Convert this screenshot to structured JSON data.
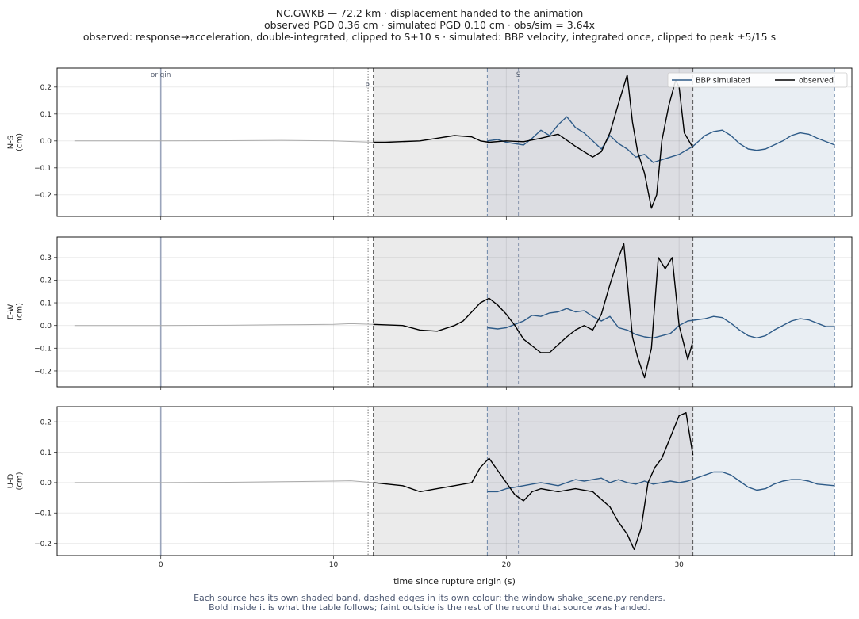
{
  "header": {
    "line1": "NC.GWKB  —  72.2 km   ·   displacement handed to the animation",
    "line2": "observed PGD 0.36 cm   ·   simulated PGD 0.10 cm   ·   obs/sim = 3.64x",
    "line3": "observed: response→acceleration, double-integrated, clipped to S+10 s   ·   simulated: BBP velocity, integrated once, clipped to peak ±5/15 s"
  },
  "footer": {
    "line1": "Each source has its own shaded band, dashed edges in its own colour: the window shake_scene.py renders.",
    "line2": "Bold inside it is what the table follows;   faint outside is the rest of the record that source was handed."
  },
  "colors": {
    "observed": "#000000",
    "simulated": "#2e5b88",
    "faint": "#aaaaaa",
    "obs_band": "#ebebeb",
    "sim_band": "#e9eef3",
    "overlap_band": "#dcdde2",
    "origin_line": "#9aa4bb"
  },
  "chart_data": {
    "type": "line",
    "xlabel": "time since rupture origin (s)",
    "xlim": [
      -6,
      40
    ],
    "xticks": [
      0,
      10,
      20,
      30
    ],
    "grid": true,
    "legend": {
      "position": "top-right",
      "entries": [
        "BBP simulated",
        "observed"
      ]
    },
    "markers": {
      "origin": 0,
      "origin_label": "origin",
      "P": 12.0,
      "P_label": "P",
      "S": 20.7,
      "S_label": "S"
    },
    "observed_window": [
      12.3,
      30.8
    ],
    "simulated_window": [
      18.9,
      39.0
    ],
    "panels": [
      {
        "ylabel": "N-S\n(cm)",
        "ylim": [
          -0.28,
          0.27
        ],
        "yticks": [
          -0.2,
          -0.1,
          0.0,
          0.1,
          0.2
        ],
        "observed": [
          [
            -5,
            0.0
          ],
          [
            0,
            0.0
          ],
          [
            4,
            0.001
          ],
          [
            7,
            0.002
          ],
          [
            10,
            0.0
          ],
          [
            12.3,
            -0.005
          ],
          [
            13,
            -0.005
          ],
          [
            15,
            0.0
          ],
          [
            16,
            0.01
          ],
          [
            17,
            0.02
          ],
          [
            18,
            0.015
          ],
          [
            18.5,
            0.0
          ],
          [
            19,
            -0.005
          ],
          [
            20,
            0.0
          ],
          [
            21,
            -0.003
          ],
          [
            22,
            0.01
          ],
          [
            23,
            0.025
          ],
          [
            24,
            -0.02
          ],
          [
            25,
            -0.06
          ],
          [
            25.5,
            -0.04
          ],
          [
            26,
            0.03
          ],
          [
            26.5,
            0.14
          ],
          [
            27,
            0.245
          ],
          [
            27.3,
            0.07
          ],
          [
            27.6,
            -0.04
          ],
          [
            28,
            -0.12
          ],
          [
            28.4,
            -0.25
          ],
          [
            28.7,
            -0.2
          ],
          [
            29,
            0.0
          ],
          [
            29.4,
            0.13
          ],
          [
            29.8,
            0.225
          ],
          [
            30,
            0.2
          ],
          [
            30.3,
            0.03
          ],
          [
            30.8,
            -0.025
          ]
        ],
        "simulated": [
          [
            18.9,
            0.0
          ],
          [
            19.5,
            0.005
          ],
          [
            20,
            -0.005
          ],
          [
            21,
            -0.015
          ],
          [
            21.5,
            0.01
          ],
          [
            22,
            0.04
          ],
          [
            22.5,
            0.02
          ],
          [
            23,
            0.06
          ],
          [
            23.5,
            0.09
          ],
          [
            24,
            0.05
          ],
          [
            24.5,
            0.03
          ],
          [
            25,
            0.0
          ],
          [
            25.5,
            -0.03
          ],
          [
            26,
            0.02
          ],
          [
            26.5,
            -0.01
          ],
          [
            27,
            -0.03
          ],
          [
            27.5,
            -0.06
          ],
          [
            28,
            -0.05
          ],
          [
            28.5,
            -0.08
          ],
          [
            29,
            -0.07
          ],
          [
            29.5,
            -0.06
          ],
          [
            30,
            -0.05
          ],
          [
            30.8,
            -0.02
          ],
          [
            31.5,
            0.02
          ],
          [
            32,
            0.035
          ],
          [
            32.5,
            0.04
          ],
          [
            33,
            0.02
          ],
          [
            33.5,
            -0.01
          ],
          [
            34,
            -0.03
          ],
          [
            34.5,
            -0.035
          ],
          [
            35,
            -0.03
          ],
          [
            36,
            0.0
          ],
          [
            36.5,
            0.02
          ],
          [
            37,
            0.03
          ],
          [
            37.5,
            0.025
          ],
          [
            38,
            0.01
          ],
          [
            39,
            -0.015
          ]
        ]
      },
      {
        "ylabel": "E-W\n(cm)",
        "ylim": [
          -0.27,
          0.39
        ],
        "yticks": [
          -0.2,
          -0.1,
          0.0,
          0.1,
          0.2,
          0.3
        ],
        "observed": [
          [
            -5,
            0.0
          ],
          [
            0,
            0.0
          ],
          [
            4,
            0.001
          ],
          [
            7,
            0.003
          ],
          [
            10,
            0.005
          ],
          [
            11,
            0.008
          ],
          [
            12.3,
            0.005
          ],
          [
            14,
            0.0
          ],
          [
            15,
            -0.02
          ],
          [
            16,
            -0.025
          ],
          [
            17,
            0.0
          ],
          [
            17.5,
            0.02
          ],
          [
            18,
            0.06
          ],
          [
            18.5,
            0.1
          ],
          [
            19,
            0.12
          ],
          [
            19.5,
            0.09
          ],
          [
            20,
            0.05
          ],
          [
            20.5,
            0.0
          ],
          [
            21,
            -0.06
          ],
          [
            21.5,
            -0.09
          ],
          [
            22,
            -0.12
          ],
          [
            22.5,
            -0.12
          ],
          [
            23,
            -0.085
          ],
          [
            23.5,
            -0.05
          ],
          [
            24,
            -0.02
          ],
          [
            24.5,
            0.0
          ],
          [
            25,
            -0.02
          ],
          [
            25.5,
            0.05
          ],
          [
            26,
            0.18
          ],
          [
            26.5,
            0.3
          ],
          [
            26.8,
            0.36
          ],
          [
            27,
            0.2
          ],
          [
            27.3,
            -0.05
          ],
          [
            27.6,
            -0.14
          ],
          [
            28,
            -0.23
          ],
          [
            28.4,
            -0.1
          ],
          [
            28.8,
            0.3
          ],
          [
            29.2,
            0.25
          ],
          [
            29.6,
            0.3
          ],
          [
            30,
            0.0
          ],
          [
            30.5,
            -0.15
          ],
          [
            30.8,
            -0.07
          ]
        ],
        "simulated": [
          [
            18.9,
            -0.01
          ],
          [
            19.5,
            -0.015
          ],
          [
            20,
            -0.01
          ],
          [
            20.5,
            0.005
          ],
          [
            21,
            0.02
          ],
          [
            21.5,
            0.045
          ],
          [
            22,
            0.04
          ],
          [
            22.5,
            0.055
          ],
          [
            23,
            0.06
          ],
          [
            23.5,
            0.075
          ],
          [
            24,
            0.06
          ],
          [
            24.5,
            0.065
          ],
          [
            25,
            0.04
          ],
          [
            25.5,
            0.02
          ],
          [
            26,
            0.04
          ],
          [
            26.5,
            -0.01
          ],
          [
            27,
            -0.02
          ],
          [
            27.5,
            -0.04
          ],
          [
            28,
            -0.05
          ],
          [
            28.5,
            -0.055
          ],
          [
            29,
            -0.045
          ],
          [
            29.5,
            -0.035
          ],
          [
            30,
            0.0
          ],
          [
            30.5,
            0.02
          ],
          [
            31,
            0.025
          ],
          [
            31.5,
            0.03
          ],
          [
            32,
            0.04
          ],
          [
            32.5,
            0.035
          ],
          [
            33,
            0.01
          ],
          [
            33.5,
            -0.02
          ],
          [
            34,
            -0.045
          ],
          [
            34.5,
            -0.055
          ],
          [
            35,
            -0.045
          ],
          [
            35.5,
            -0.02
          ],
          [
            36,
            0.0
          ],
          [
            36.5,
            0.02
          ],
          [
            37,
            0.03
          ],
          [
            37.5,
            0.025
          ],
          [
            38,
            0.01
          ],
          [
            38.5,
            -0.005
          ],
          [
            39,
            -0.005
          ]
        ]
      },
      {
        "ylabel": "U-D\n(cm)",
        "ylim": [
          -0.24,
          0.25
        ],
        "yticks": [
          -0.2,
          -0.1,
          0.0,
          0.1,
          0.2
        ],
        "observed": [
          [
            -5,
            0.0
          ],
          [
            0,
            0.0
          ],
          [
            4,
            0.001
          ],
          [
            7,
            0.003
          ],
          [
            10,
            0.005
          ],
          [
            11,
            0.006
          ],
          [
            12.3,
            0.0
          ],
          [
            14,
            -0.01
          ],
          [
            15,
            -0.03
          ],
          [
            16,
            -0.02
          ],
          [
            17,
            -0.01
          ],
          [
            18,
            0.0
          ],
          [
            18.5,
            0.05
          ],
          [
            19,
            0.08
          ],
          [
            19.5,
            0.04
          ],
          [
            20,
            0.0
          ],
          [
            20.5,
            -0.04
          ],
          [
            21,
            -0.06
          ],
          [
            21.5,
            -0.03
          ],
          [
            22,
            -0.02
          ],
          [
            23,
            -0.03
          ],
          [
            24,
            -0.02
          ],
          [
            25,
            -0.03
          ],
          [
            26,
            -0.08
          ],
          [
            26.5,
            -0.13
          ],
          [
            27,
            -0.17
          ],
          [
            27.4,
            -0.22
          ],
          [
            27.8,
            -0.15
          ],
          [
            28.2,
            0.0
          ],
          [
            28.6,
            0.05
          ],
          [
            29,
            0.08
          ],
          [
            29.5,
            0.15
          ],
          [
            30,
            0.22
          ],
          [
            30.4,
            0.23
          ],
          [
            30.8,
            0.09
          ]
        ],
        "simulated": [
          [
            18.9,
            -0.03
          ],
          [
            19.5,
            -0.03
          ],
          [
            20,
            -0.02
          ],
          [
            20.5,
            -0.015
          ],
          [
            21,
            -0.01
          ],
          [
            21.5,
            -0.005
          ],
          [
            22,
            0.0
          ],
          [
            22.5,
            -0.005
          ],
          [
            23,
            -0.01
          ],
          [
            23.5,
            0.0
          ],
          [
            24,
            0.01
          ],
          [
            24.5,
            0.005
          ],
          [
            25,
            0.01
          ],
          [
            25.5,
            0.015
          ],
          [
            26,
            0.0
          ],
          [
            26.5,
            0.01
          ],
          [
            27,
            0.0
          ],
          [
            27.5,
            -0.005
          ],
          [
            28,
            0.005
          ],
          [
            28.5,
            -0.005
          ],
          [
            29,
            0.0
          ],
          [
            29.5,
            0.005
          ],
          [
            30,
            0.0
          ],
          [
            30.5,
            0.005
          ],
          [
            31,
            0.015
          ],
          [
            31.5,
            0.025
          ],
          [
            32,
            0.035
          ],
          [
            32.5,
            0.035
          ],
          [
            33,
            0.025
          ],
          [
            33.5,
            0.005
          ],
          [
            34,
            -0.015
          ],
          [
            34.5,
            -0.025
          ],
          [
            35,
            -0.02
          ],
          [
            35.5,
            -0.005
          ],
          [
            36,
            0.005
          ],
          [
            36.5,
            0.01
          ],
          [
            37,
            0.01
          ],
          [
            37.5,
            0.005
          ],
          [
            38,
            -0.005
          ],
          [
            39,
            -0.01
          ]
        ]
      }
    ]
  }
}
